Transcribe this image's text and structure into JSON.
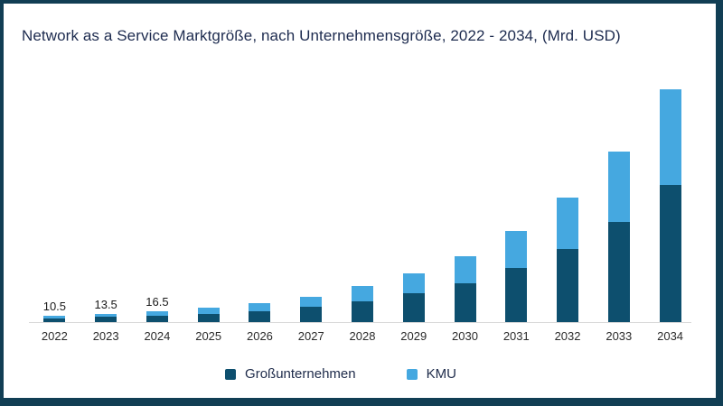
{
  "header": {
    "title": "Network as a Service Marktgröße, nach Unternehmensgröße, 2022 - 2034, (Mrd. USD)"
  },
  "colors": {
    "frame_border": "#113e54",
    "grossunternehmen": "#0d4f6e",
    "kmu": "#45a8e0",
    "title_text": "#1d2b4f",
    "axis_line": "#d8d8d8",
    "tick_text": "#2b2b2b",
    "value_label_text": "#1a1a1a",
    "background": "#ffffff"
  },
  "legend": {
    "items": [
      {
        "id": "grossunternehmen",
        "label": "Großunternehmen",
        "color": "#0d4f6e"
      },
      {
        "id": "kmu",
        "label": "KMU",
        "color": "#45a8e0"
      }
    ]
  },
  "chart_data": {
    "type": "bar",
    "stacked": true,
    "title": "Network as a Service Marktgröße, nach Unternehmensgröße, 2022 - 2034, (Mrd. USD)",
    "unit": "Mrd. USD",
    "xlabel": "",
    "ylabel": "",
    "categories": [
      "2022",
      "2023",
      "2024",
      "2025",
      "2026",
      "2027",
      "2028",
      "2029",
      "2030",
      "2031",
      "2032",
      "2033",
      "2034"
    ],
    "series": [
      {
        "name": "Großunternehmen",
        "color": "#0d4f6e",
        "values": [
          6.2,
          8.0,
          9.7,
          13.2,
          17.6,
          23.7,
          33.3,
          45.1,
          61.4,
          84.7,
          115.6,
          158.1,
          215.9
        ]
      },
      {
        "name": "KMU",
        "color": "#45a8e0",
        "values": [
          4.3,
          5.5,
          6.8,
          9.1,
          12.2,
          16.4,
          23.2,
          31.4,
          42.6,
          58.8,
          80.4,
          109.9,
          150.1
        ]
      }
    ],
    "totals": [
      10.5,
      13.5,
      16.5,
      22.3,
      29.8,
      40.1,
      56.5,
      76.5,
      104.0,
      143.5,
      196.0,
      268.0,
      366.0
    ],
    "visible_value_labels": [
      "10.5",
      "13.5",
      "16.5",
      "",
      "",
      "",
      "",
      "",
      "",
      "",
      "",
      "",
      ""
    ],
    "ylim": [
      0,
      380
    ],
    "grid": false,
    "legend_position": "bottom"
  }
}
